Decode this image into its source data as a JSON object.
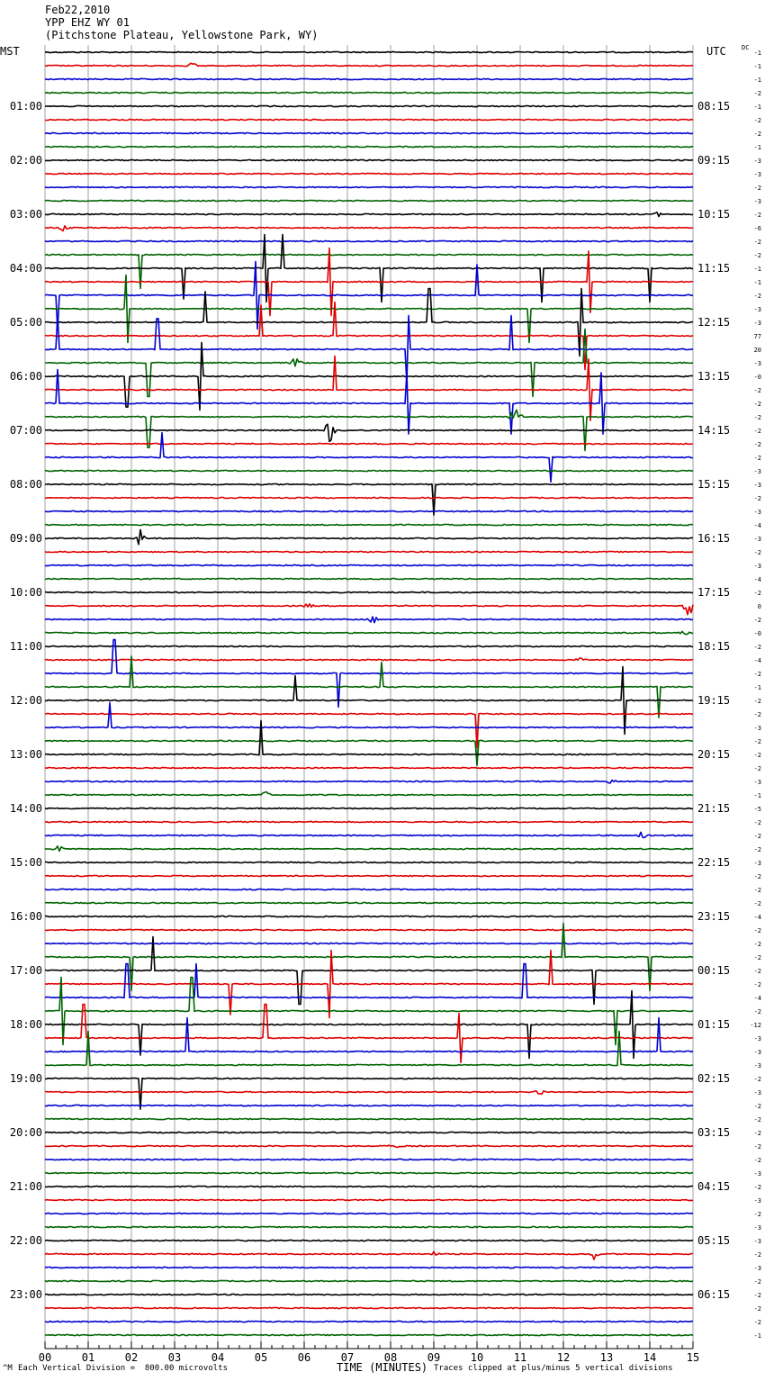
{
  "header": {
    "date": "Feb22,2010",
    "station": "YPP EHZ WY 01",
    "location": "(Pitchstone Plateau, Yellowstone Park, WY)"
  },
  "left_title": "MST",
  "right_title": "UTC",
  "dc_label": "DC",
  "footer": {
    "scale": "Each Vertical Division =  800.00 microvolts",
    "xlabel": "TIME (MINUTES)",
    "clip_note": "Traces clipped at plus/minus 5 vertical divisions",
    "corner_mark": "^M"
  },
  "colors": {
    "trace_cycle": [
      "#000000",
      "#e00000",
      "#0000d0",
      "#006400"
    ],
    "grid": "#a0a0a0",
    "axis": "#000000"
  },
  "chart_data": {
    "type": "line",
    "description_of_traces": "helicorder 96 traces, 15 minutes each",
    "x_range": [
      0,
      15
    ],
    "x_ticks": [
      "00",
      "01",
      "02",
      "03",
      "04",
      "05",
      "06",
      "07",
      "08",
      "09",
      "10",
      "11",
      "12",
      "13",
      "14",
      "15"
    ],
    "trace_count": 96,
    "left_time_labels": [
      "01:00",
      "02:00",
      "03:00",
      "04:00",
      "05:00",
      "06:00",
      "07:00",
      "08:00",
      "09:00",
      "10:00",
      "11:00",
      "12:00",
      "13:00",
      "14:00",
      "15:00",
      "16:00",
      "17:00",
      "18:00",
      "19:00",
      "20:00",
      "21:00",
      "22:00",
      "23:00"
    ],
    "right_time_labels": [
      "08:15",
      "09:15",
      "10:15",
      "11:15",
      "12:15",
      "13:15",
      "14:15",
      "15:15",
      "16:15",
      "17:15",
      "18:15",
      "19:15",
      "20:15",
      "21:15",
      "22:15",
      "23:15",
      "00:15",
      "01:15",
      "02:15",
      "03:15",
      "04:15",
      "05:15",
      "06:15"
    ],
    "dc_offsets": [
      "-1",
      "-1",
      "-1",
      "-2",
      "-1",
      "-2",
      "-2",
      "-1",
      "-3",
      "-3",
      "-2",
      "-3",
      "-2",
      "-6",
      "-2",
      "-2",
      "-1",
      "-1",
      "-2",
      "-3",
      "-3",
      "77",
      "20",
      "-3",
      "-0",
      "-2",
      "-2",
      "-2",
      "-2",
      "-2",
      "-2",
      "-3",
      "-3",
      "-2",
      "-3",
      "-4",
      "-3",
      "-2",
      "-3",
      "-4",
      "-2",
      "0",
      "-2",
      "-0",
      "-2",
      "-4",
      "-2",
      "-1",
      "-2",
      "-2",
      "-3",
      "-2",
      "-2",
      "-2",
      "-3",
      "-1",
      "-5",
      "-2",
      "-2",
      "-2",
      "-3",
      "-2",
      "-2",
      "-2",
      "-4",
      "-2",
      "-2",
      "-2",
      "-2",
      "-2",
      "-4",
      "-2",
      "-12",
      "-3",
      "-3",
      "-3",
      "-2",
      "-3",
      "-2",
      "-2",
      "-2",
      "-2",
      "-2",
      "-3",
      "-2",
      "-3",
      "-2",
      "-3",
      "-3",
      "-2",
      "-3",
      "-2",
      "-2",
      "-2",
      "-2",
      "-1"
    ],
    "events": [
      {
        "trace": 1,
        "minute": 3.4,
        "amp": 0.3,
        "type": "burst"
      },
      {
        "trace": 13,
        "minute": 0.4,
        "amp": 0.3,
        "type": "burst"
      },
      {
        "trace": 12,
        "minute": 14.2,
        "amp": 0.2,
        "type": "burst"
      },
      {
        "trace": 15,
        "minute": 2.2,
        "amp": 1.4,
        "type": "spike"
      },
      {
        "trace": 16,
        "minute": 3.2,
        "amp": 1.0,
        "type": "spike"
      },
      {
        "trace": 16,
        "minute": 5.1,
        "amp": 1.2,
        "type": "spike"
      },
      {
        "trace": 16,
        "minute": 5.5,
        "amp": 1.5,
        "type": "spike"
      },
      {
        "trace": 16,
        "minute": 7.8,
        "amp": 1.2,
        "type": "spike"
      },
      {
        "trace": 16,
        "minute": 11.5,
        "amp": 1.4,
        "type": "spike"
      },
      {
        "trace": 16,
        "minute": 14.0,
        "amp": 1.6,
        "type": "spike"
      },
      {
        "trace": 17,
        "minute": 5.2,
        "amp": 1.4,
        "type": "spike"
      },
      {
        "trace": 17,
        "minute": 6.6,
        "amp": 1.2,
        "type": "spike"
      },
      {
        "trace": 17,
        "minute": 12.6,
        "amp": 1.0,
        "type": "spike"
      },
      {
        "trace": 18,
        "minute": 0.3,
        "amp": 1.5,
        "type": "spike"
      },
      {
        "trace": 18,
        "minute": 4.9,
        "amp": 1.2,
        "type": "spike"
      },
      {
        "trace": 18,
        "minute": 10.0,
        "amp": 1.0,
        "type": "spike"
      },
      {
        "trace": 19,
        "minute": 1.9,
        "amp": 1.2,
        "type": "spike"
      },
      {
        "trace": 19,
        "minute": 11.2,
        "amp": 1.4,
        "type": "spike"
      },
      {
        "trace": 20,
        "minute": 3.7,
        "amp": 1.0,
        "type": "spike"
      },
      {
        "trace": 20,
        "minute": 8.9,
        "amp": 1.2,
        "type": "spike"
      },
      {
        "trace": 20,
        "minute": 12.4,
        "amp": 1.4,
        "type": "spike"
      },
      {
        "trace": 21,
        "minute": 5.0,
        "amp": 1.0,
        "type": "spike"
      },
      {
        "trace": 21,
        "minute": 6.7,
        "amp": 1.2,
        "type": "spike"
      },
      {
        "trace": 21,
        "minute": 12.5,
        "amp": 1.6,
        "type": "spike"
      },
      {
        "trace": 22,
        "minute": 0.3,
        "amp": 1.6,
        "type": "spike"
      },
      {
        "trace": 22,
        "minute": 2.6,
        "amp": 1.0,
        "type": "spike"
      },
      {
        "trace": 22,
        "minute": 8.4,
        "amp": 1.2,
        "type": "spike"
      },
      {
        "trace": 22,
        "minute": 10.8,
        "amp": 1.4,
        "type": "spike"
      },
      {
        "trace": 23,
        "minute": 2.4,
        "amp": 1.2,
        "type": "spike"
      },
      {
        "trace": 23,
        "minute": 5.8,
        "amp": 0.4,
        "type": "burst"
      },
      {
        "trace": 23,
        "minute": 11.3,
        "amp": 1.2,
        "type": "spike"
      },
      {
        "trace": 23,
        "minute": 12.5,
        "amp": 1.5,
        "type": "spike"
      },
      {
        "trace": 24,
        "minute": 1.9,
        "amp": 1.0,
        "type": "spike"
      },
      {
        "trace": 24,
        "minute": 3.6,
        "amp": 1.2,
        "type": "spike"
      },
      {
        "trace": 25,
        "minute": 6.7,
        "amp": 1.2,
        "type": "spike"
      },
      {
        "trace": 25,
        "minute": 12.6,
        "amp": 1.0,
        "type": "spike"
      },
      {
        "trace": 26,
        "minute": 0.3,
        "amp": 1.4,
        "type": "spike"
      },
      {
        "trace": 26,
        "minute": 8.4,
        "amp": 1.0,
        "type": "spike"
      },
      {
        "trace": 26,
        "minute": 10.8,
        "amp": 1.0,
        "type": "spike"
      },
      {
        "trace": 26,
        "minute": 12.9,
        "amp": 1.0,
        "type": "spike"
      },
      {
        "trace": 27,
        "minute": 2.4,
        "amp": 1.0,
        "type": "spike"
      },
      {
        "trace": 27,
        "minute": 10.9,
        "amp": 0.8,
        "type": "burst"
      },
      {
        "trace": 27,
        "minute": 12.5,
        "amp": 1.2,
        "type": "spike"
      },
      {
        "trace": 28,
        "minute": 6.6,
        "amp": 1.0,
        "type": "burst"
      },
      {
        "trace": 30,
        "minute": 2.7,
        "amp": 0.8,
        "type": "spike"
      },
      {
        "trace": 30,
        "minute": 11.7,
        "amp": 0.8,
        "type": "spike"
      },
      {
        "trace": 32,
        "minute": 9.0,
        "amp": 1.0,
        "type": "spike"
      },
      {
        "trace": 36,
        "minute": 2.2,
        "amp": 0.7,
        "type": "burst"
      },
      {
        "trace": 41,
        "minute": 6.1,
        "amp": 0.2,
        "type": "burst"
      },
      {
        "trace": 41,
        "minute": 14.9,
        "amp": 0.8,
        "type": "burst"
      },
      {
        "trace": 42,
        "minute": 7.6,
        "amp": 0.3,
        "type": "burst"
      },
      {
        "trace": 43,
        "minute": 14.8,
        "amp": 0.2,
        "type": "burst"
      },
      {
        "trace": 45,
        "minute": 12.4,
        "amp": 0.2,
        "type": "burst"
      },
      {
        "trace": 46,
        "minute": 1.6,
        "amp": 1.4,
        "type": "spike"
      },
      {
        "trace": 46,
        "minute": 6.8,
        "amp": 1.2,
        "type": "spike"
      },
      {
        "trace": 47,
        "minute": 2.0,
        "amp": 1.0,
        "type": "spike"
      },
      {
        "trace": 47,
        "minute": 7.8,
        "amp": 0.8,
        "type": "spike"
      },
      {
        "trace": 47,
        "minute": 14.2,
        "amp": 1.0,
        "type": "spike"
      },
      {
        "trace": 48,
        "minute": 5.8,
        "amp": 0.8,
        "type": "spike"
      },
      {
        "trace": 48,
        "minute": 13.4,
        "amp": 1.6,
        "type": "spike"
      },
      {
        "trace": 49,
        "minute": 10.0,
        "amp": 1.6,
        "type": "spike"
      },
      {
        "trace": 50,
        "minute": 1.5,
        "amp": 0.8,
        "type": "spike"
      },
      {
        "trace": 51,
        "minute": 10.0,
        "amp": 0.8,
        "type": "spike"
      },
      {
        "trace": 52,
        "minute": 5.0,
        "amp": 1.2,
        "type": "spike"
      },
      {
        "trace": 54,
        "minute": 13.1,
        "amp": 0.2,
        "type": "burst"
      },
      {
        "trace": 55,
        "minute": 5.1,
        "amp": 0.3,
        "type": "burst"
      },
      {
        "trace": 58,
        "minute": 13.8,
        "amp": 0.3,
        "type": "burst"
      },
      {
        "trace": 59,
        "minute": 0.3,
        "amp": 0.3,
        "type": "burst"
      },
      {
        "trace": 67,
        "minute": 2.0,
        "amp": 1.4,
        "type": "spike"
      },
      {
        "trace": 67,
        "minute": 12.0,
        "amp": 1.2,
        "type": "spike"
      },
      {
        "trace": 67,
        "minute": 14.0,
        "amp": 1.6,
        "type": "spike"
      },
      {
        "trace": 68,
        "minute": 2.5,
        "amp": 1.2,
        "type": "spike"
      },
      {
        "trace": 68,
        "minute": 5.9,
        "amp": 1.4,
        "type": "spike"
      },
      {
        "trace": 68,
        "minute": 12.7,
        "amp": 1.4,
        "type": "spike"
      },
      {
        "trace": 69,
        "minute": 4.3,
        "amp": 1.0,
        "type": "spike"
      },
      {
        "trace": 69,
        "minute": 6.6,
        "amp": 1.2,
        "type": "spike"
      },
      {
        "trace": 69,
        "minute": 11.7,
        "amp": 1.4,
        "type": "spike"
      },
      {
        "trace": 70,
        "minute": 1.9,
        "amp": 1.4,
        "type": "spike"
      },
      {
        "trace": 70,
        "minute": 3.5,
        "amp": 1.2,
        "type": "spike"
      },
      {
        "trace": 70,
        "minute": 11.1,
        "amp": 1.2,
        "type": "spike"
      },
      {
        "trace": 71,
        "minute": 0.4,
        "amp": 1.2,
        "type": "spike"
      },
      {
        "trace": 71,
        "minute": 3.4,
        "amp": 1.2,
        "type": "spike"
      },
      {
        "trace": 71,
        "minute": 13.2,
        "amp": 1.2,
        "type": "spike"
      },
      {
        "trace": 72,
        "minute": 2.2,
        "amp": 1.0,
        "type": "spike"
      },
      {
        "trace": 72,
        "minute": 11.2,
        "amp": 1.6,
        "type": "spike"
      },
      {
        "trace": 72,
        "minute": 13.6,
        "amp": 1.2,
        "type": "spike"
      },
      {
        "trace": 73,
        "minute": 0.9,
        "amp": 1.2,
        "type": "spike"
      },
      {
        "trace": 73,
        "minute": 5.1,
        "amp": 1.4,
        "type": "spike"
      },
      {
        "trace": 73,
        "minute": 9.6,
        "amp": 0.8,
        "type": "spike"
      },
      {
        "trace": 74,
        "minute": 3.3,
        "amp": 1.2,
        "type": "spike"
      },
      {
        "trace": 74,
        "minute": 14.2,
        "amp": 1.2,
        "type": "spike"
      },
      {
        "trace": 75,
        "minute": 1.0,
        "amp": 1.2,
        "type": "spike"
      },
      {
        "trace": 75,
        "minute": 13.3,
        "amp": 1.2,
        "type": "spike"
      },
      {
        "trace": 76,
        "minute": 2.2,
        "amp": 1.0,
        "type": "spike"
      },
      {
        "trace": 77,
        "minute": 11.4,
        "amp": 0.6,
        "type": "burst"
      },
      {
        "trace": 81,
        "minute": 8.1,
        "amp": 0.3,
        "type": "burst"
      },
      {
        "trace": 89,
        "minute": 9.0,
        "amp": 0.2,
        "type": "burst"
      },
      {
        "trace": 89,
        "minute": 12.7,
        "amp": 0.5,
        "type": "burst"
      }
    ]
  }
}
